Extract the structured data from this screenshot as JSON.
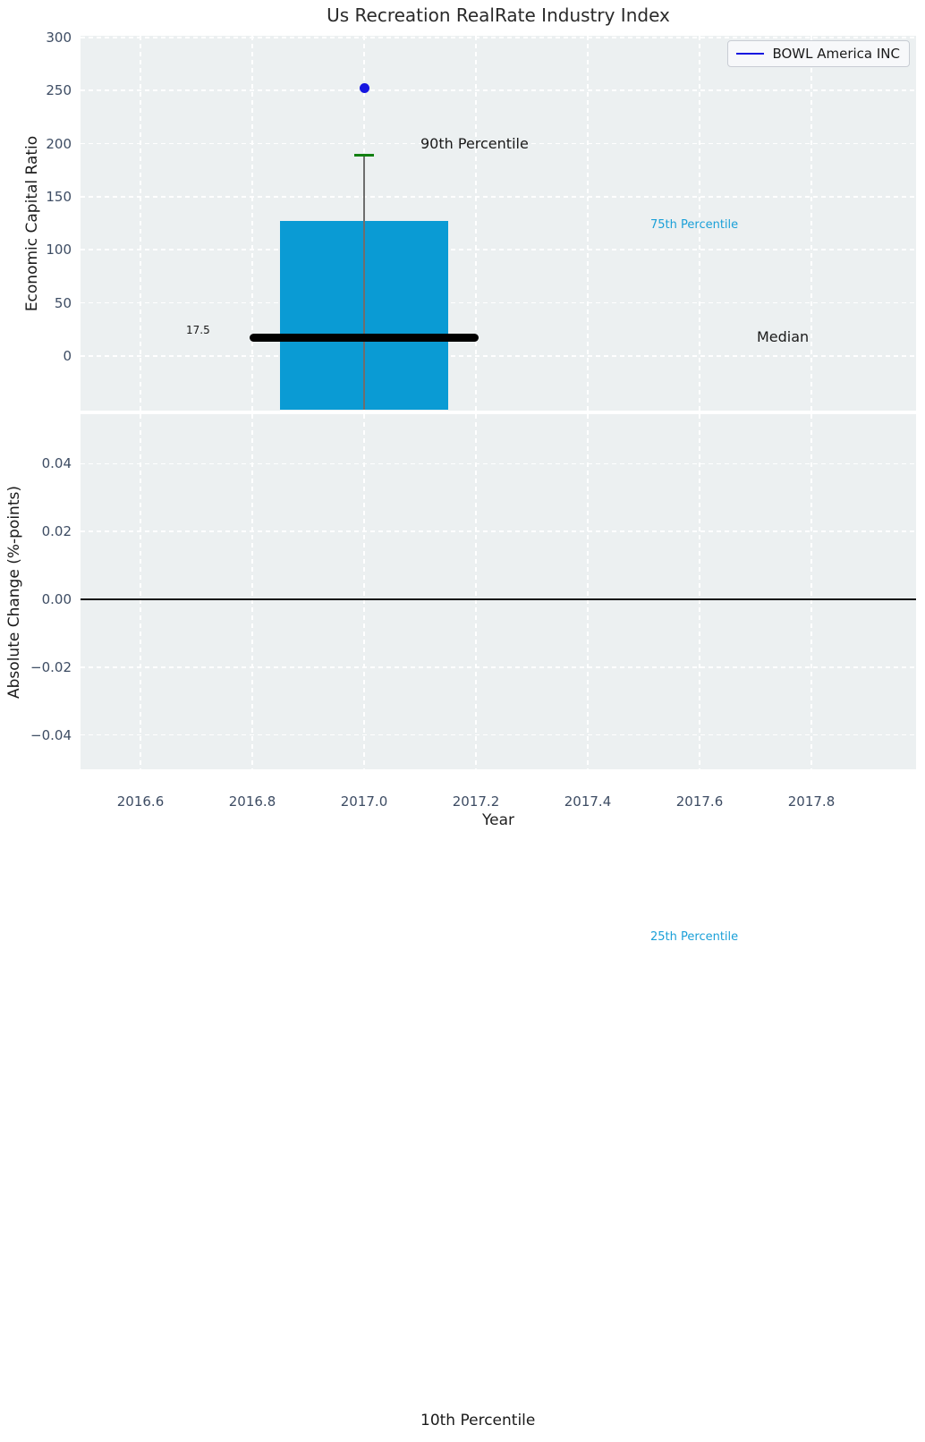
{
  "chart_data": {
    "type": "box",
    "title": "Us Recreation RealRate Industry Index",
    "xlabel": "Year",
    "x_tick_labels": [
      "2016.6",
      "2016.8",
      "2017.0",
      "2017.2",
      "2017.4",
      "2017.6",
      "2017.8"
    ],
    "x_tick_values": [
      2016.6,
      2016.8,
      2017.0,
      2017.2,
      2017.4,
      2017.6,
      2017.8
    ],
    "xlim": [
      2016.4928,
      2017.9872
    ],
    "top_axis": {
      "ylabel": "Economic Capital Ratio",
      "y_tick_labels": [
        "0",
        "50",
        "100",
        "150",
        "200",
        "250",
        "300"
      ],
      "y_tick_values": [
        0,
        50,
        100,
        150,
        200,
        250,
        300
      ],
      "ylim": [
        -51.5,
        301.6
      ],
      "grid": "dashed-white"
    },
    "bottom_axis": {
      "ylabel": "Absolute Change (%-points)",
      "y_tick_labels": [
        "−0.04",
        "−0.02",
        "0.00",
        "0.02",
        "0.04"
      ],
      "y_tick_values": [
        -0.04,
        -0.02,
        0.0,
        0.02,
        0.04
      ],
      "ylim": [
        -0.0501,
        0.0546
      ],
      "zero_line_value": 0.0,
      "grid": "dashed-white"
    },
    "box_series": {
      "x": 2017.0,
      "box_width_years": 0.3,
      "median": 17.5,
      "median_label": "17.5",
      "median_line_halfwidth_years": 0.205,
      "q75": 127.5,
      "q25": -50.5,
      "p90": 189,
      "p90_cap_halfwidth_years": 0.017
    },
    "series": [
      {
        "name": "BOWL America INC",
        "color": "#1515e0",
        "points": [
          {
            "x": 2017.0,
            "y": 252.5
          }
        ]
      }
    ],
    "labels": {
      "p90": "90th Percentile",
      "p75": "75th Percentile",
      "median": "Median",
      "p25": "25th Percentile",
      "p10": "10th Percentile",
      "median_value": "17.5"
    },
    "legend": {
      "position": "upper right",
      "entries": [
        {
          "label": "BOWL America INC",
          "color": "#1515e0"
        }
      ]
    },
    "colors": {
      "plot_background": "#ecf0f1",
      "grid": "#ffffff",
      "box_fill": "#0a9bd4",
      "median_line": "#000000",
      "p90_cap": "#128012",
      "whisker": "#6e6e6e",
      "outlier_point": "#1515e0",
      "legend_line": "#1515e0",
      "zero_line": "#111111",
      "tick_label": "#3d4c63",
      "percentile_label_cyan": "#1ba0d8",
      "text_dark": "#1a1a1a"
    }
  }
}
